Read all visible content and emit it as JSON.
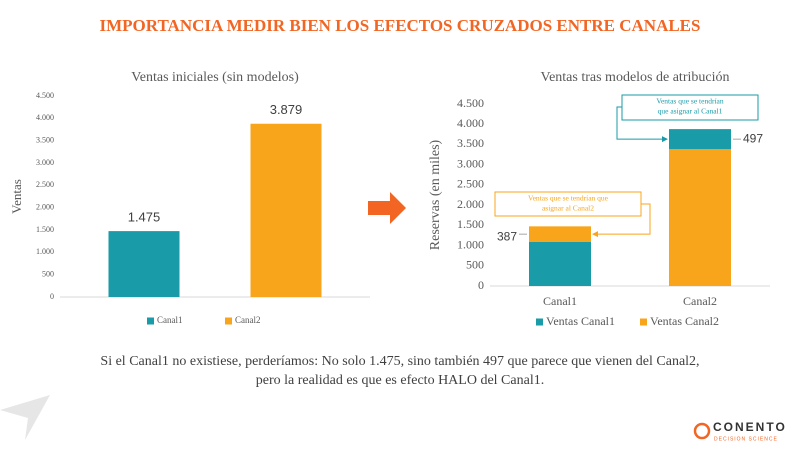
{
  "title": "IMPORTANCIA MEDIR BIEN LOS EFECTOS CRUZADOS ENTRE CANALES",
  "chart_data": [
    {
      "type": "bar",
      "title": "Ventas iniciales (sin modelos)",
      "ylabel": "Ventas",
      "categories": [
        null
      ],
      "series": [
        {
          "name": "Canal1",
          "color": "#1a9ba8",
          "values": [
            1475
          ],
          "value_labels": [
            "1.475"
          ]
        },
        {
          "name": "Canal2",
          "color": "#f9a51b",
          "values": [
            3879
          ],
          "value_labels": [
            "3.879"
          ]
        }
      ],
      "ylim": [
        0,
        4500
      ],
      "yticks": [
        0,
        500,
        {
          "value": 1000,
          "label": "1.000"
        },
        {
          "value": 1500,
          "label": "1.500"
        },
        {
          "value": 2000,
          "label": "2.000"
        },
        {
          "value": 2500,
          "label": "2.500"
        },
        {
          "value": 3000,
          "label": "3.000"
        },
        {
          "value": 3500,
          "label": "3.500"
        },
        {
          "value": 4000,
          "label": "4.000"
        },
        {
          "value": 4500,
          "label": "4.500"
        }
      ],
      "legend": "bottom"
    },
    {
      "type": "stacked_bar",
      "title": "Ventas tras modelos de atribución",
      "ylabel": "Reservas (en miles)",
      "categories": [
        "Canal1",
        "Canal2"
      ],
      "series": [
        {
          "name": "Ventas Canal1",
          "color": "#1a9ba8",
          "values": [
            1088,
            497
          ]
        },
        {
          "name": "Ventas Canal2",
          "color": "#f9a51b",
          "values": [
            387,
            3382
          ]
        }
      ],
      "stack_order": [
        [
          0,
          1
        ],
        [
          1,
          0
        ]
      ],
      "ylim": [
        0,
        4500
      ],
      "yticks": [
        0,
        500,
        {
          "value": 1000,
          "label": "1.000"
        },
        {
          "value": 1500,
          "label": "1.500"
        },
        {
          "value": 2000,
          "label": "2.000"
        },
        {
          "value": 2500,
          "label": "2.500"
        },
        {
          "value": 3000,
          "label": "3.000"
        },
        {
          "value": 3500,
          "label": "3.500"
        },
        {
          "value": 4000,
          "label": "4.000"
        },
        {
          "value": 4500,
          "label": "4.500"
        }
      ],
      "annotations": [
        {
          "lines": [
            "Ventas que se tendrían que",
            "asignar al Canal2"
          ],
          "series": 1,
          "category": 0
        },
        {
          "lines": [
            "Ventas que se tendrían",
            "que asignar al Canal1"
          ],
          "series": 0,
          "category": 1
        }
      ],
      "legend": "bottom"
    }
  ],
  "footnote": [
    "Si el Canal1 no existiese, perderíamos: No solo 1.475, sino también 497 que parece que vienen del Canal2,",
    "pero la realidad es que es efecto HALO del Canal1."
  ],
  "logo": {
    "name": "CONENTO",
    "tagline": "DECISION SCIENCE"
  }
}
